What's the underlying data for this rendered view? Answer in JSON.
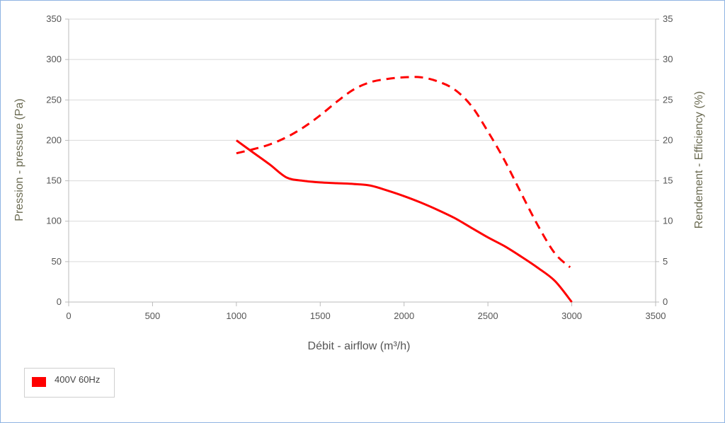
{
  "chart_data": {
    "type": "line",
    "title": "",
    "xlabel": "Débit - airflow (m³/h)",
    "ylabel_left": "Pression - pressure (Pa)",
    "ylabel_right": "Rendement - Efficiency (%)",
    "xlim": [
      0,
      3500
    ],
    "ylim_left": [
      0,
      350
    ],
    "ylim_right": [
      0,
      35
    ],
    "x_ticks": [
      "0",
      "500",
      "1000",
      "1500",
      "2000",
      "2500",
      "3000",
      "3500"
    ],
    "y_left_ticks": [
      "0",
      "50",
      "100",
      "150",
      "200",
      "250",
      "300",
      "350"
    ],
    "y_right_ticks": [
      "0",
      "5",
      "10",
      "15",
      "20",
      "25",
      "30",
      "35"
    ],
    "grid": true,
    "legend_position": "bottom-left",
    "series": [
      {
        "name": "400V 60Hz",
        "axis": "left",
        "style": "solid",
        "color": "#ff0000",
        "x": [
          1000,
          1100,
          1200,
          1300,
          1400,
          1500,
          1600,
          1700,
          1800,
          1900,
          2000,
          2100,
          2200,
          2300,
          2400,
          2500,
          2600,
          2700,
          2800,
          2900,
          3000
        ],
        "y": [
          200,
          185,
          170,
          154,
          150,
          148,
          147,
          146,
          144,
          138,
          131,
          123,
          114,
          104,
          92,
          80,
          69,
          56,
          42,
          26,
          0
        ]
      },
      {
        "name": "",
        "axis": "right",
        "style": "dashed",
        "color": "#ff0000",
        "x": [
          1000,
          1100,
          1200,
          1300,
          1400,
          1500,
          1600,
          1700,
          1800,
          1900,
          2000,
          2100,
          2200,
          2300,
          2400,
          2500,
          2600,
          2700,
          2800,
          2900,
          2990
        ],
        "y": [
          18.4,
          18.9,
          19.5,
          20.4,
          21.6,
          23.1,
          24.8,
          26.3,
          27.2,
          27.6,
          27.8,
          27.8,
          27.3,
          26.3,
          24.3,
          21.1,
          17.5,
          13.4,
          9.4,
          6.0,
          4.3
        ]
      }
    ]
  }
}
